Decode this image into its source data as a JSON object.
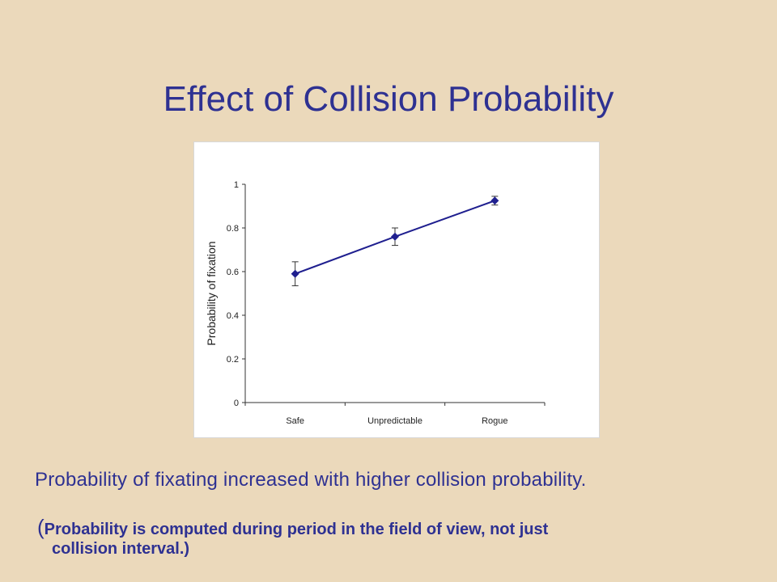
{
  "slide": {
    "title": "Effect of Collision Probability",
    "body": "Probability of fixating increased with higher collision probability.",
    "note_open": "(",
    "note_line1": "Probability is computed during period in the field of view, not just",
    "note_line2": "collision interval.)"
  },
  "colors": {
    "background": "#ebd9bb",
    "text": "#2e3192",
    "series": "#1f1f8f"
  },
  "chart_data": {
    "type": "line",
    "categories": [
      "Safe",
      "Unpredictable",
      "Rogue"
    ],
    "values": [
      0.59,
      0.76,
      0.925
    ],
    "error": [
      0.055,
      0.04,
      0.02
    ],
    "ylabel": "Probability of fixation",
    "xlabel": "",
    "ylim": [
      0,
      1
    ],
    "yticks": [
      "0",
      "0.2",
      "0.4",
      "0.6",
      "0.8",
      "1"
    ],
    "marker": "diamond",
    "grid": false,
    "legend": "none"
  }
}
